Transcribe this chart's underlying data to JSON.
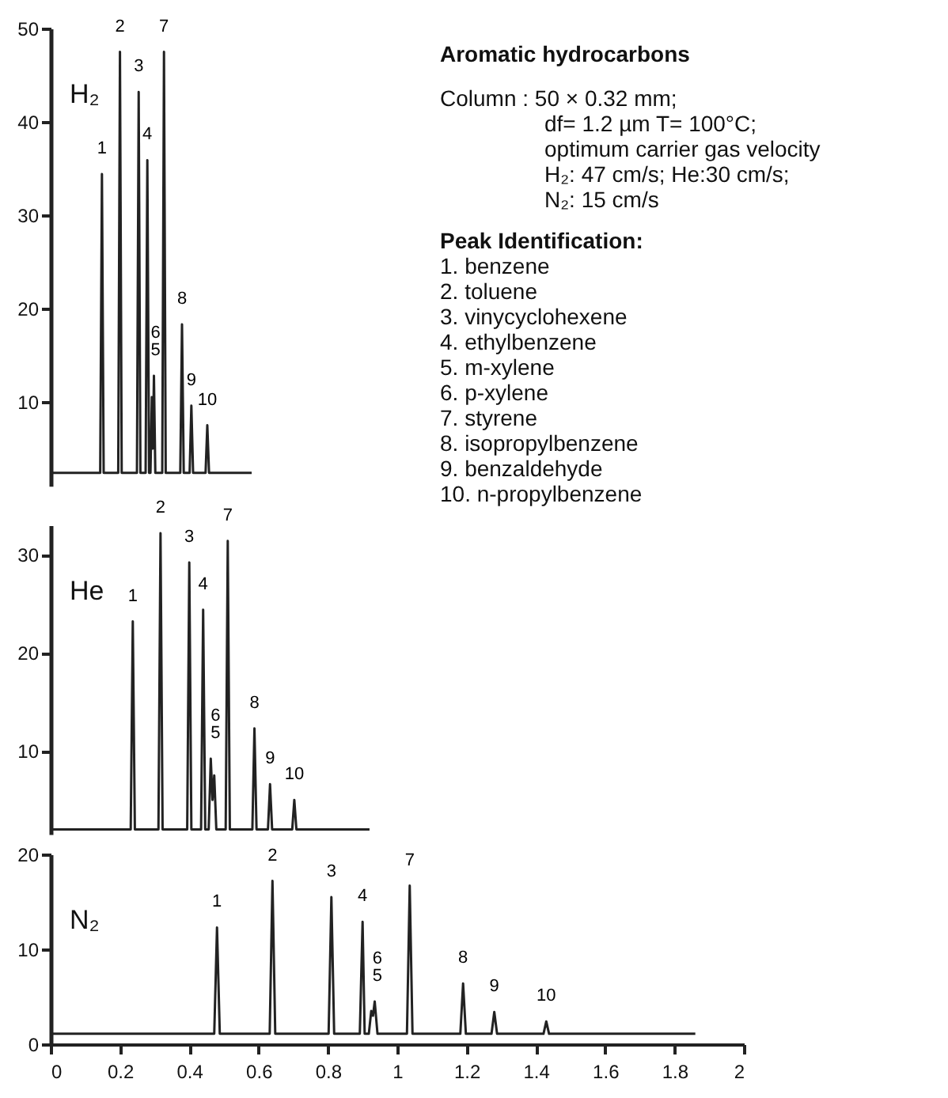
{
  "chart_data": [
    {
      "type": "line",
      "title": "Aromatic hydrocarbons",
      "xlim": [
        0,
        2
      ],
      "ylim": [
        1,
        50
      ],
      "yticks": [
        10,
        20,
        30,
        40,
        50
      ],
      "tick_labels": "y",
      "series": [
        {
          "color": "#222222",
          "x": [
            0,
            0.143,
            0.148,
            0.153,
            0.195,
            0.2,
            0.205,
            0.249,
            0.254,
            0.259,
            0.274,
            0.279,
            0.284,
            0.288,
            0.292,
            0.295,
            0.298,
            0.302,
            0.322,
            0.327,
            0.332,
            0.374,
            0.379,
            0.384,
            0.401,
            0.406,
            0.411,
            0.447,
            0.452,
            0.457,
            0.58
          ],
          "values": [
            2.4,
            2.4,
            34.4,
            2.4,
            2.4,
            47.5,
            2.4,
            2.4,
            43.2,
            2.4,
            2.4,
            35.9,
            2.4,
            2.4,
            10.5,
            5,
            12.8,
            2.4,
            2.4,
            47.5,
            2.4,
            2.4,
            18.3,
            2.4,
            2.4,
            9.6,
            2.4,
            2.4,
            7.5,
            2.4,
            2.4
          ]
        }
      ],
      "annotations": [
        "H₂",
        "Column : 50 × 0.32 mm;",
        "df= 1.2 µm T= 100°C;",
        "optimum carrier gas velocity",
        "H₂: 47 cm/s; He:30 cm/s;",
        "N₂: 15 cm/s",
        "Peak Identification:",
        "1. benzene",
        "2. toluene",
        "3. vinycyclohexene",
        "4. ethylbenzene",
        "5. m-xylene",
        "6. p-xylene",
        "7. styrene",
        "8. isopropylbenzene",
        "9. benzaldehyde",
        "10. n-propylbenzene",
        {
          "text": "1",
          "x": 0.148,
          "y": 34.4
        },
        {
          "text": "2",
          "x": 0.2,
          "y": 47.5
        },
        {
          "text": "3",
          "x": 0.254,
          "y": 43.2
        },
        {
          "text": "4",
          "x": 0.279,
          "y": 35.9
        },
        {
          "text": "5",
          "x": 0.292,
          "y": 10.5
        },
        {
          "text": "6",
          "x": 0.298,
          "y": 12.8
        },
        {
          "text": "7",
          "x": 0.327,
          "y": 47.5
        },
        {
          "text": "8",
          "x": 0.379,
          "y": 18.3
        },
        {
          "text": "9",
          "x": 0.406,
          "y": 9.6
        },
        {
          "text": "10",
          "x": 0.452,
          "y": 7.5
        }
      ]
    },
    {
      "type": "line",
      "xlim": [
        0,
        2
      ],
      "ylim": [
        1.5,
        33
      ],
      "yticks": [
        10,
        20,
        30
      ],
      "tick_labels": "y",
      "series": [
        {
          "color": "#222222",
          "x": [
            0,
            0.231,
            0.237,
            0.243,
            0.311,
            0.317,
            0.323,
            0.394,
            0.4,
            0.406,
            0.434,
            0.44,
            0.446,
            0.456,
            0.462,
            0.467,
            0.472,
            0.478,
            0.505,
            0.511,
            0.517,
            0.582,
            0.588,
            0.594,
            0.627,
            0.633,
            0.639,
            0.697,
            0.703,
            0.709,
            0.92
          ],
          "values": [
            2,
            2,
            23.2,
            2,
            2,
            32.2,
            2,
            2,
            29.2,
            2,
            2,
            24.4,
            2,
            2,
            9.2,
            5,
            7.5,
            2,
            2,
            31.4,
            2,
            2,
            12.3,
            2,
            2,
            6.6,
            2,
            2,
            5,
            2,
            2
          ]
        }
      ],
      "annotations": [
        "He",
        {
          "text": "1",
          "x": 0.237,
          "y": 23.2
        },
        {
          "text": "2",
          "x": 0.317,
          "y": 32.2
        },
        {
          "text": "3",
          "x": 0.4,
          "y": 29.2
        },
        {
          "text": "4",
          "x": 0.44,
          "y": 24.4
        },
        {
          "text": "6",
          "x": 0.462,
          "y": 9.2
        },
        {
          "text": "5",
          "x": 0.472,
          "y": 7.5
        },
        {
          "text": "7",
          "x": 0.511,
          "y": 31.4
        },
        {
          "text": "8",
          "x": 0.588,
          "y": 12.3
        },
        {
          "text": "9",
          "x": 0.633,
          "y": 6.6
        },
        {
          "text": "10",
          "x": 0.703,
          "y": 5
        }
      ]
    },
    {
      "type": "line",
      "xlim": [
        0,
        2
      ],
      "xticks": [
        0,
        0.2,
        0.4,
        0.6,
        0.8,
        1,
        1.2,
        1.4,
        1.6,
        1.8,
        2
      ],
      "ylim": [
        0,
        20
      ],
      "yticks": [
        0,
        10,
        20
      ],
      "series": [
        {
          "color": "#222222",
          "x": [
            0,
            0.472,
            0.48,
            0.488,
            0.632,
            0.64,
            0.648,
            0.802,
            0.81,
            0.818,
            0.892,
            0.9,
            0.906,
            0.918,
            0.925,
            0.93,
            0.935,
            0.943,
            1.028,
            1.036,
            1.044,
            1.182,
            1.19,
            1.198,
            1.272,
            1.28,
            1.288,
            1.422,
            1.43,
            1.438,
            1.86
          ],
          "values": [
            1.1,
            1.1,
            12.3,
            1.1,
            1.1,
            17.2,
            1.1,
            1.1,
            15.5,
            1.1,
            1.1,
            12.9,
            1.1,
            1.1,
            3.5,
            3,
            4.5,
            1.1,
            1.1,
            16.7,
            1.1,
            1.1,
            6.4,
            1.1,
            1.1,
            3.4,
            1.1,
            1.1,
            2.4,
            1.1,
            1.1
          ]
        }
      ],
      "annotations": [
        "N₂",
        {
          "text": "1",
          "x": 0.48,
          "y": 12.3
        },
        {
          "text": "2",
          "x": 0.64,
          "y": 17.2
        },
        {
          "text": "3",
          "x": 0.81,
          "y": 15.5
        },
        {
          "text": "4",
          "x": 0.9,
          "y": 12.9
        },
        {
          "text": "5",
          "x": 0.925,
          "y": 3.5
        },
        {
          "text": "6",
          "x": 0.935,
          "y": 4.5
        },
        {
          "text": "7",
          "x": 1.036,
          "y": 16.7
        },
        {
          "text": "8",
          "x": 1.19,
          "y": 6.4
        },
        {
          "text": "9",
          "x": 1.28,
          "y": 3.4
        },
        {
          "text": "10",
          "x": 1.43,
          "y": 2.4
        }
      ]
    }
  ]
}
